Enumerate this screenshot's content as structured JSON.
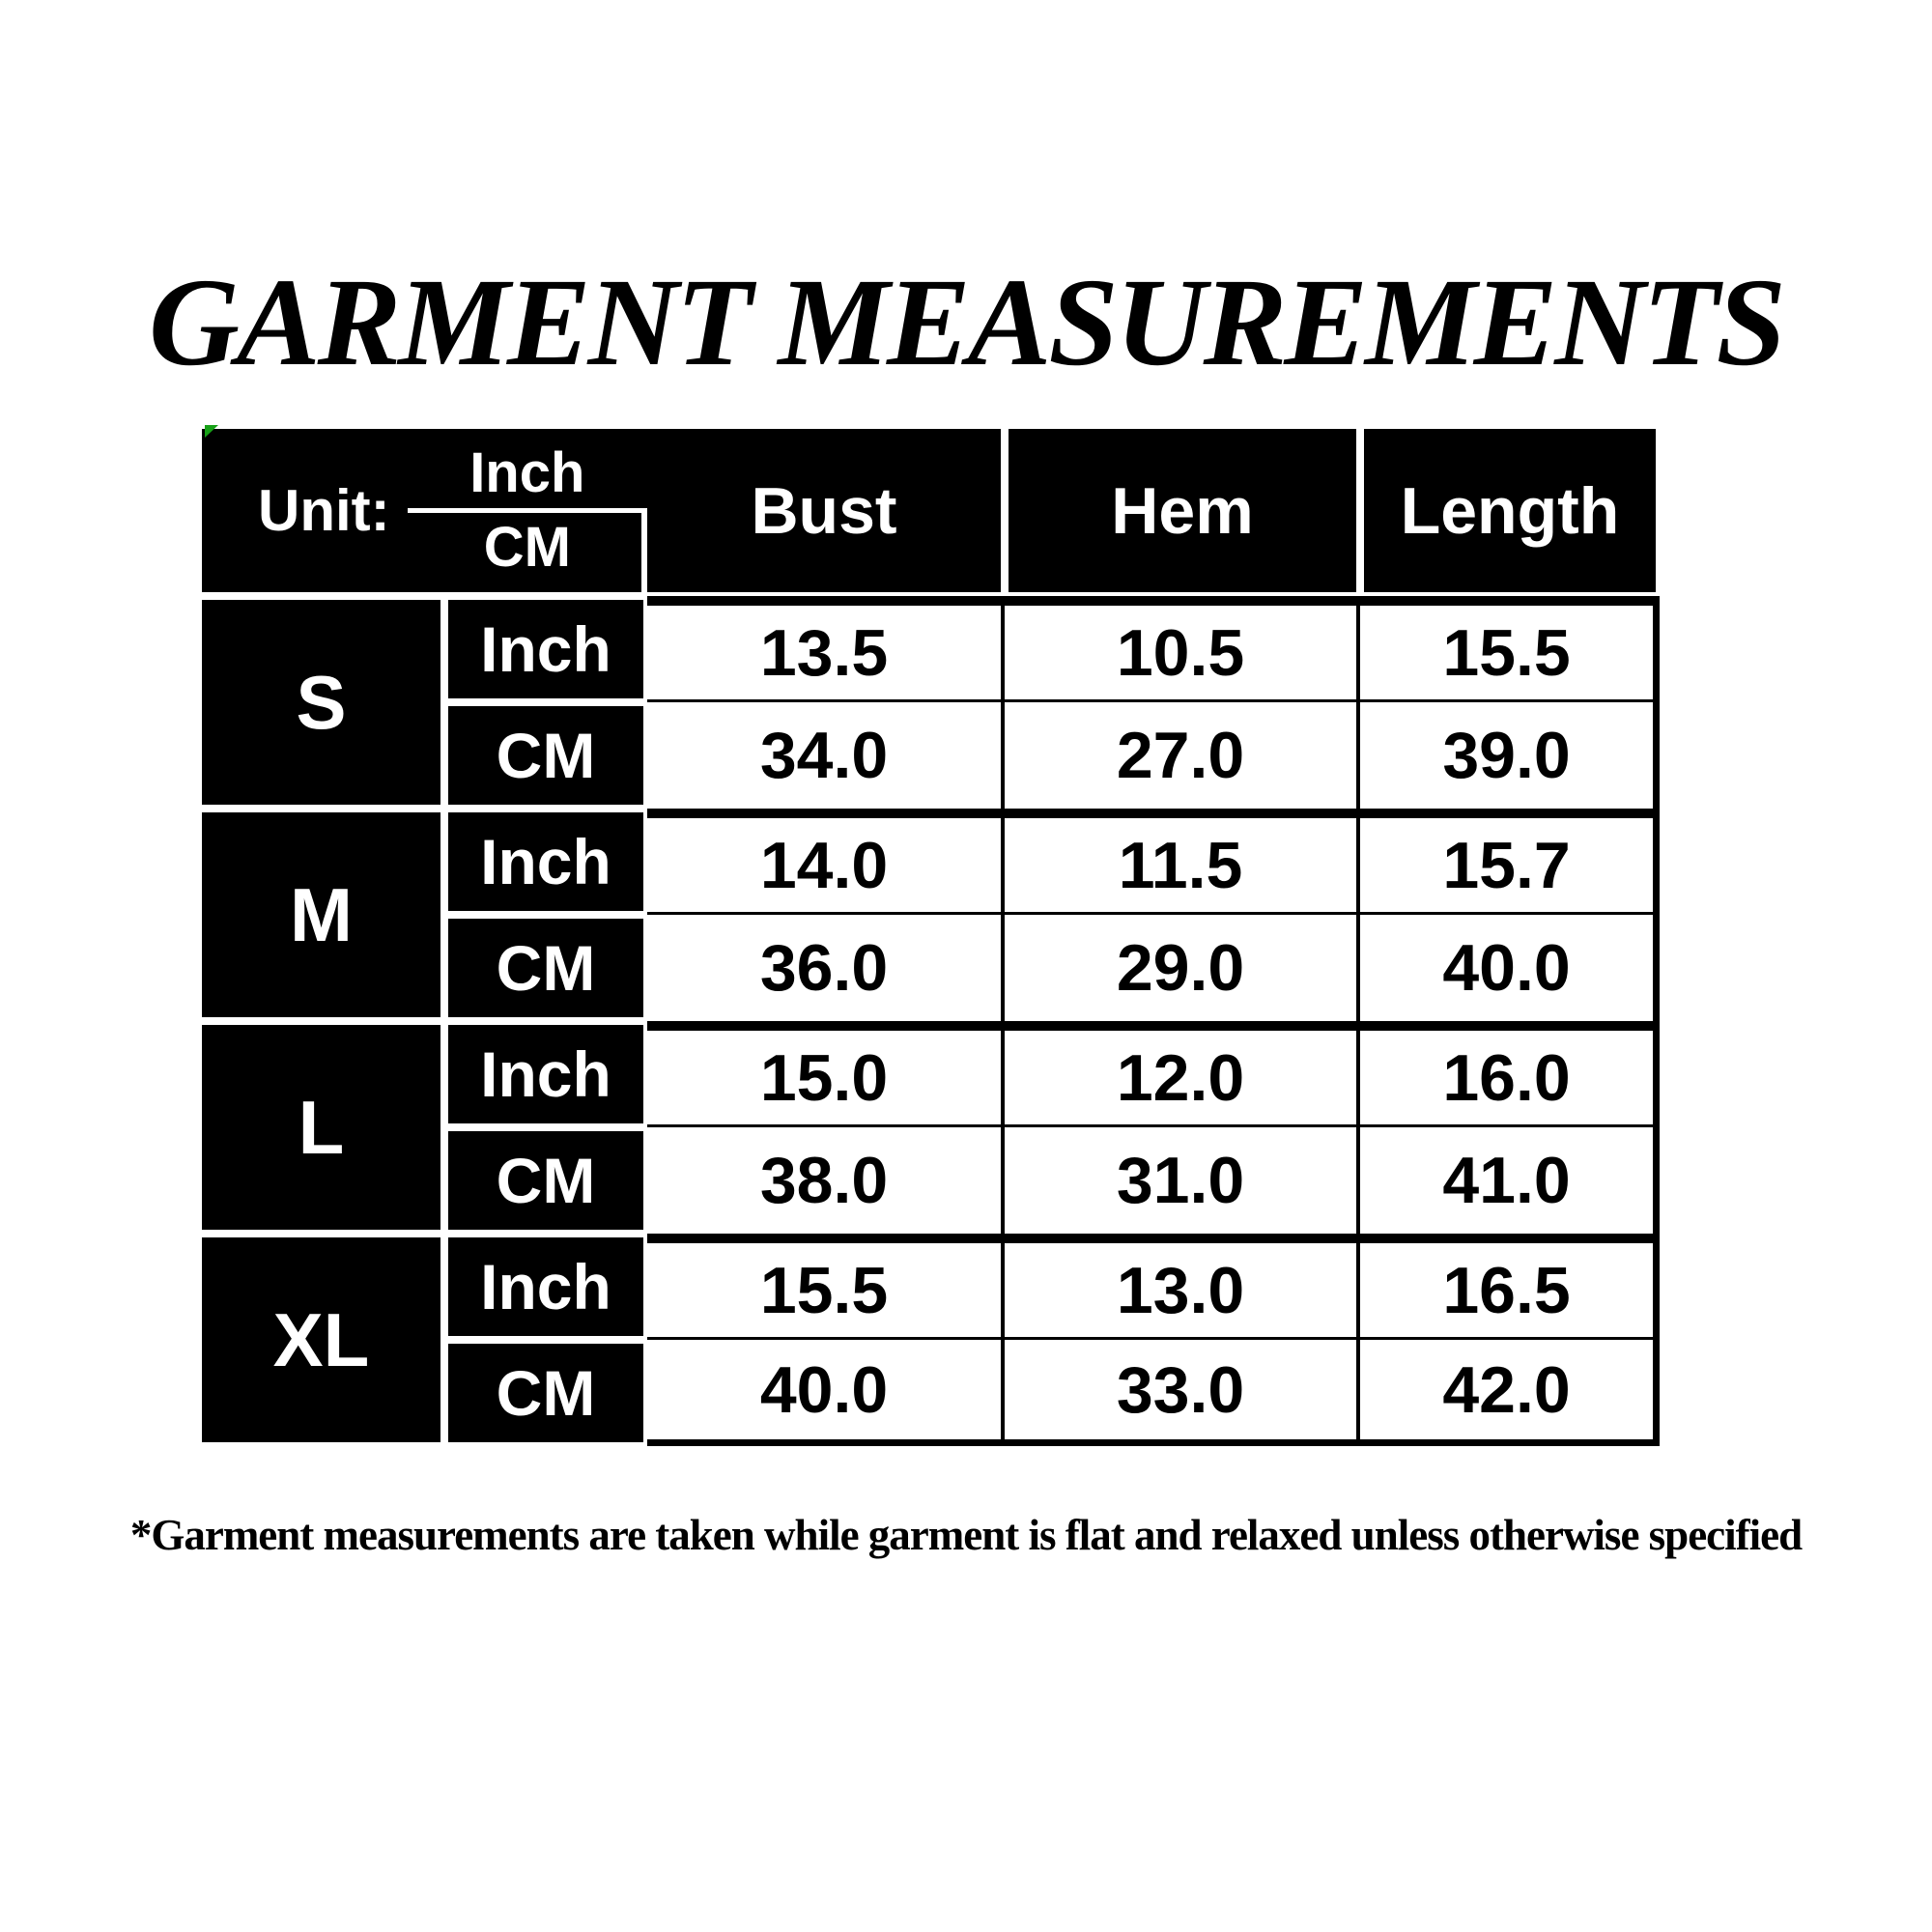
{
  "title": "GARMENT MEASUREMENTS",
  "table": {
    "unit_label": "Unit:",
    "unit_inch": "Inch",
    "unit_cm": "CM",
    "columns": [
      "Bust",
      "Hem",
      "Length"
    ],
    "row_unit_labels": {
      "inch": "Inch",
      "cm": "CM"
    },
    "rows": [
      {
        "size": "S",
        "inch": [
          "13.5",
          "10.5",
          "15.5"
        ],
        "cm": [
          "34.0",
          "27.0",
          "39.0"
        ]
      },
      {
        "size": "M",
        "inch": [
          "14.0",
          "11.5",
          "15.7"
        ],
        "cm": [
          "36.0",
          "29.0",
          "40.0"
        ]
      },
      {
        "size": "L",
        "inch": [
          "15.0",
          "12.0",
          "16.0"
        ],
        "cm": [
          "38.0",
          "31.0",
          "41.0"
        ]
      },
      {
        "size": "XL",
        "inch": [
          "15.5",
          "13.0",
          "16.5"
        ],
        "cm": [
          "40.0",
          "33.0",
          "42.0"
        ]
      }
    ]
  },
  "footnote": "*Garment measurements are taken while garment is flat and relaxed unless otherwise specified",
  "colors": {
    "cell_background": "#000000",
    "cell_text": "#ffffff",
    "data_text": "#000000",
    "page_background": "#ffffff",
    "corner_mark_green": "#17a017"
  }
}
